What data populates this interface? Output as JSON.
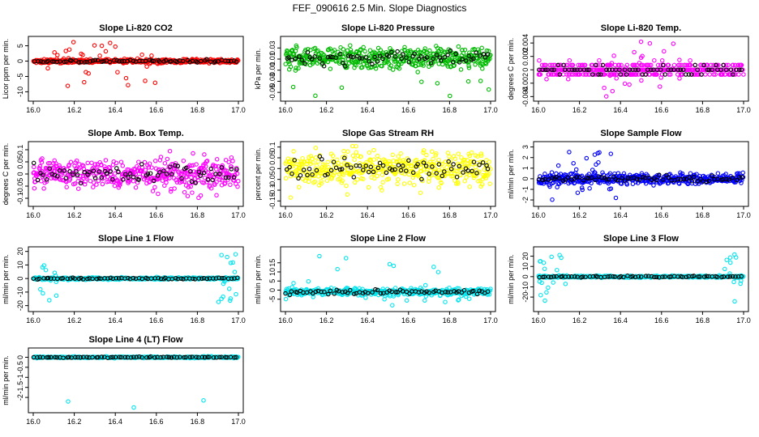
{
  "figure": {
    "title": "FEF_090616  2.5 Min. Slope Diagnostics"
  },
  "chart_data": [
    {
      "id": "co2",
      "type": "scatter",
      "title": "Slope Li-820 CO2",
      "ylabel": "Licor ppm per min.",
      "color": "#ff0000",
      "xlim": [
        16.0,
        17.0
      ],
      "ylim": [
        -12,
        7
      ],
      "xticks": [
        16.0,
        16.2,
        16.4,
        16.6,
        16.8,
        17.0
      ],
      "yticks": [
        -10,
        -5,
        0,
        5
      ],
      "spread": {
        "center": 0,
        "dense": 0.8,
        "outlier_max": 6.5,
        "outlier_min": -11.5,
        "outlier_window": [
          16.0,
          16.6
        ]
      }
    },
    {
      "id": "pressure",
      "type": "scatter",
      "title": "Slope Li-820 Pressure",
      "ylabel": "kPa per min.",
      "color": "#00bb00",
      "xlim": [
        16.0,
        17.0
      ],
      "ylim": [
        -0.06,
        0.045
      ],
      "xticks": [
        16.0,
        16.2,
        16.4,
        16.6,
        16.8,
        17.0
      ],
      "yticks": [
        -0.05,
        -0.03,
        -0.01,
        0.01,
        0.03
      ],
      "spread": {
        "center": 0.012,
        "dense": 0.022,
        "outlier_max": 0.035,
        "outlier_min": -0.058,
        "outlier_window": [
          16.0,
          17.0
        ]
      }
    },
    {
      "id": "licor_temp",
      "type": "scatter",
      "title": "Slope Li-820 Temp.",
      "ylabel": "degrees C per min.",
      "color": "#ff00ff",
      "xlim": [
        16.0,
        17.0
      ],
      "ylim": [
        -0.0042,
        0.0045
      ],
      "xticks": [
        16.0,
        16.2,
        16.4,
        16.6,
        16.8,
        17.0
      ],
      "yticks": [
        -0.004,
        -0.002,
        0.0,
        0.002,
        0.004
      ],
      "spread": {
        "center": 0,
        "dense": 0.0012,
        "outlier_max": 0.0042,
        "outlier_min": -0.004,
        "outlier_window": [
          16.3,
          16.7
        ],
        "quantized": 0.0007
      }
    },
    {
      "id": "box_temp",
      "type": "scatter",
      "title": "Slope Amb. Box Temp.",
      "ylabel": "degrees C per min.",
      "color": "#ff00ff",
      "xlim": [
        16.0,
        17.0
      ],
      "ylim": [
        -0.12,
        0.12
      ],
      "xticks": [
        16.0,
        16.2,
        16.4,
        16.6,
        16.8,
        17.0
      ],
      "yticks": [
        -0.1,
        -0.05,
        0.0,
        0.05,
        0.1
      ],
      "spread": {
        "center": 0,
        "dense": 0.07,
        "outlier_max": 0.1,
        "outlier_min": -0.1,
        "outlier_window": [
          16.0,
          17.0
        ]
      }
    },
    {
      "id": "rh",
      "type": "scatter",
      "title": "Slope Gas Stream RH",
      "ylabel": "percent per min.",
      "color": "#ffff00",
      "xlim": [
        16.0,
        17.0
      ],
      "ylim": [
        -0.16,
        0.11
      ],
      "xticks": [
        16.0,
        16.2,
        16.4,
        16.6,
        16.8,
        17.0
      ],
      "yticks": [
        -0.15,
        -0.1,
        -0.05,
        0.0,
        0.05,
        0.1
      ],
      "spread": {
        "center": 0,
        "dense": 0.09,
        "outlier_max": 0.1,
        "outlier_min": -0.15,
        "outlier_window": [
          16.0,
          17.0
        ]
      }
    },
    {
      "id": "sample_flow",
      "type": "scatter",
      "title": "Slope Sample Flow",
      "ylabel": "ml/min per min.",
      "color": "#0000ff",
      "xlim": [
        16.0,
        17.0
      ],
      "ylim": [
        -2.3,
        3.2
      ],
      "xticks": [
        16.0,
        16.2,
        16.4,
        16.6,
        16.8,
        17.0
      ],
      "yticks": [
        -2,
        -1,
        0,
        1,
        2,
        3
      ],
      "spread": {
        "center": 0,
        "dense": 0.6,
        "outlier_max": 2.8,
        "outlier_min": -2.0,
        "outlier_window": [
          16.05,
          16.4
        ]
      }
    },
    {
      "id": "line1",
      "type": "scatter",
      "title": "Slope Line 1 Flow",
      "ylabel": "ml/min per min.",
      "color": "#00e5ee",
      "xlim": [
        16.0,
        17.0
      ],
      "ylim": [
        -22,
        21
      ],
      "xticks": [
        16.0,
        16.2,
        16.4,
        16.6,
        16.8,
        17.0
      ],
      "yticks": [
        -20,
        -10,
        0,
        10,
        20
      ],
      "spread": {
        "center": 0,
        "dense": 1.0,
        "outlier_max": 18,
        "outlier_min": -18,
        "outlier_window": [
          16.0,
          16.12
        ],
        "outlier_window2": [
          16.9,
          17.0
        ]
      }
    },
    {
      "id": "line2",
      "type": "scatter",
      "title": "Slope Line 2 Flow",
      "ylabel": "ml/min per min.",
      "color": "#00e5ee",
      "xlim": [
        16.0,
        17.0
      ],
      "ylim": [
        -10,
        22
      ],
      "xticks": [
        16.0,
        16.2,
        16.4,
        16.6,
        16.8,
        17.0
      ],
      "yticks": [
        -5,
        0,
        5,
        10,
        15
      ],
      "spread": {
        "center": -1,
        "dense": 2.2,
        "outlier_max": 20,
        "outlier_min": -9,
        "outlier_window": [
          16.0,
          17.0
        ]
      }
    },
    {
      "id": "line3",
      "type": "scatter",
      "title": "Slope Line 3 Flow",
      "ylabel": "ml/min per min.",
      "color": "#00e5ee",
      "xlim": [
        16.0,
        17.0
      ],
      "ylim": [
        -31,
        26
      ],
      "xticks": [
        16.0,
        16.2,
        16.4,
        16.6,
        16.8,
        17.0
      ],
      "yticks": [
        -20,
        -10,
        0,
        10,
        20
      ],
      "spread": {
        "center": 0,
        "dense": 1.2,
        "outlier_max": 23,
        "outlier_min": -28,
        "outlier_window": [
          16.0,
          16.15
        ],
        "outlier_window2": [
          16.9,
          17.0
        ]
      }
    },
    {
      "id": "line4",
      "type": "scatter",
      "title": "Slope Line 4 (LT) Flow",
      "ylabel": "ml/min per min.",
      "color": "#00e5ee",
      "xlim": [
        16.0,
        17.0
      ],
      "ylim": [
        -2.6,
        0.3
      ],
      "xticks": [
        16.0,
        16.2,
        16.4,
        16.6,
        16.8,
        17.0
      ],
      "yticks": [
        -2.0,
        -1.5,
        -1.0,
        -0.5,
        0.0
      ],
      "spread": {
        "center": 0,
        "dense": 0.05,
        "outlier_max": 0.1,
        "outlier_min": -2.5,
        "outlier_fixed": [
          [
            16.17,
            -2.2
          ],
          [
            16.49,
            -2.5
          ],
          [
            16.83,
            -2.15
          ]
        ]
      }
    }
  ]
}
